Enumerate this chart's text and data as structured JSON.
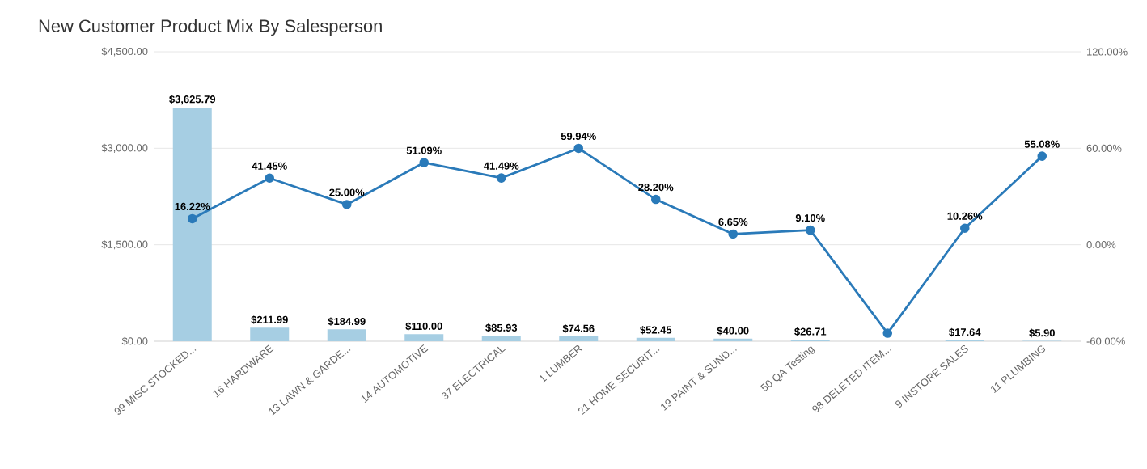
{
  "chart_data": {
    "type": "bar",
    "title": "New Customer Product Mix By Salesperson",
    "categories": [
      "99 MISC STOCKED...",
      "16 HARDWARE",
      "13 LAWN & GARDE...",
      "14 AUTOMOTIVE",
      "37 ELECTRICAL",
      "1 LUMBER",
      "21 HOME SECURIT...",
      "19 PAINT & SUND...",
      "50 QA Testing",
      "98 DELETED ITEM...",
      "9 INSTORE SALES",
      "11 PLUMBING"
    ],
    "series": [
      {
        "color": "#a6cee3",
        "values": [
          3625.79,
          211.99,
          184.99,
          110.0,
          85.93,
          74.56,
          52.45,
          40.0,
          26.71,
          null,
          17.64,
          5.9
        ],
        "value_labels": [
          "$3,625.79",
          "$211.99",
          "$184.99",
          "$110.00",
          "$85.93",
          "$74.56",
          "$52.45",
          "$40.00",
          "$26.71",
          null,
          "$17.64",
          "$5.90"
        ]
      },
      {
        "type": "line",
        "axis": "y2",
        "color": "#2a7ab9",
        "values": [
          16.22,
          41.45,
          25.0,
          51.09,
          41.49,
          59.94,
          28.2,
          6.65,
          9.1,
          -55,
          10.26,
          55.08
        ],
        "value_labels": [
          "16.22%",
          "41.45%",
          "25.00%",
          "51.09%",
          "41.49%",
          "59.94%",
          "28.20%",
          "6.65%",
          "9.10%",
          null,
          "10.26%",
          "55.08%"
        ]
      }
    ],
    "ylim": [
      0,
      4500
    ],
    "yticks": [
      {
        "value": 0,
        "label": "$0.00"
      },
      {
        "value": 1500,
        "label": "$1,500.00"
      },
      {
        "value": 3000,
        "label": "$3,000.00"
      },
      {
        "value": 4500,
        "label": "$4,500.00"
      }
    ],
    "y2lim": [
      -60,
      120
    ],
    "y2ticks": [
      {
        "value": -60,
        "label": "-60.00%"
      },
      {
        "value": 0,
        "label": "0.00%"
      },
      {
        "value": 60,
        "label": "60.00%"
      },
      {
        "value": 120,
        "label": "120.00%"
      }
    ],
    "grid": "y",
    "marker": "circle"
  }
}
